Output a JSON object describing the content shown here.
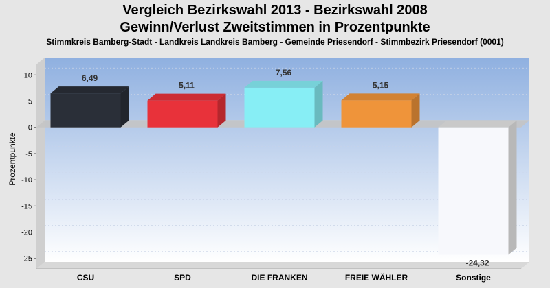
{
  "chart_data": {
    "type": "bar",
    "title": "Vergleich Bezirkswahl 2013 - Bezirkswahl 2008",
    "subtitle": "Gewinn/Verlust Zweitstimmen in Prozentpunkte",
    "caption": "Stimmkreis Bamberg-Stadt - Landkreis Landkreis Bamberg - Gemeinde Priesendorf - Stimmbezirk Priesendorf (0001)",
    "xlabel": "",
    "ylabel": "Prozentpunkte",
    "categories": [
      "CSU",
      "SPD",
      "DIE FRANKEN",
      "FREIE WÄHLER",
      "Sonstige"
    ],
    "values": [
      6.49,
      5.11,
      7.56,
      5.15,
      -24.32
    ],
    "value_labels": [
      "6,49",
      "5,11",
      "7,56",
      "5,15",
      "-24,32"
    ],
    "colors": [
      "#2a2f38",
      "#e8323a",
      "#87eef5",
      "#ef943a",
      "#f7f8fc"
    ],
    "ylim": [
      -27,
      12
    ],
    "yticks": [
      10,
      5,
      0,
      -5,
      -10,
      -15,
      -20,
      -25
    ],
    "ytick_labels": [
      "10",
      "5",
      "0",
      "-5",
      "-10",
      "-15",
      "-20",
      "-25"
    ],
    "grid": true,
    "legend": "none"
  }
}
